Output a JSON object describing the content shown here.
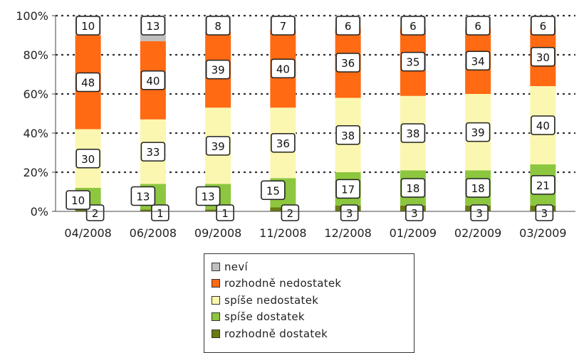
{
  "chart_data": {
    "type": "bar",
    "stacked": true,
    "categories": [
      "04/2008",
      "06/2008",
      "09/2008",
      "11/2008",
      "12/2008",
      "01/2009",
      "02/2009",
      "03/2009"
    ],
    "y_tick_labels": [
      "0%",
      "20%",
      "40%",
      "60%",
      "80%",
      "100%"
    ],
    "ylim": [
      0,
      100
    ],
    "grid": "dotted horizontal",
    "legend_position": "bottom",
    "series": [
      {
        "name": "rozhodně dostatek",
        "color": "#6b7a12",
        "values": [
          2,
          1,
          1,
          2,
          3,
          3,
          3,
          3
        ]
      },
      {
        "name": "spíše dostatek",
        "color": "#8dc63f",
        "values": [
          10,
          13,
          13,
          15,
          17,
          18,
          18,
          21
        ]
      },
      {
        "name": "spíše nedostatek",
        "color": "#fbf7b0",
        "values": [
          30,
          33,
          39,
          36,
          38,
          38,
          39,
          40
        ]
      },
      {
        "name": "rozhodně nedostatek",
        "color": "#ff6a13",
        "values": [
          48,
          40,
          39,
          40,
          36,
          35,
          34,
          30
        ]
      },
      {
        "name": "neví",
        "color": "#bfbfbf",
        "values": [
          10,
          13,
          8,
          7,
          6,
          6,
          6,
          6
        ]
      }
    ]
  },
  "legend": {
    "items": [
      {
        "label": "neví",
        "color": "#bfbfbf"
      },
      {
        "label": "rozhodně nedostatek",
        "color": "#ff6a13"
      },
      {
        "label": "spíše nedostatek",
        "color": "#fbf7b0"
      },
      {
        "label": "spíše dostatek",
        "color": "#8dc63f"
      },
      {
        "label": "rozhodně dostatek",
        "color": "#6b7a12"
      }
    ]
  }
}
